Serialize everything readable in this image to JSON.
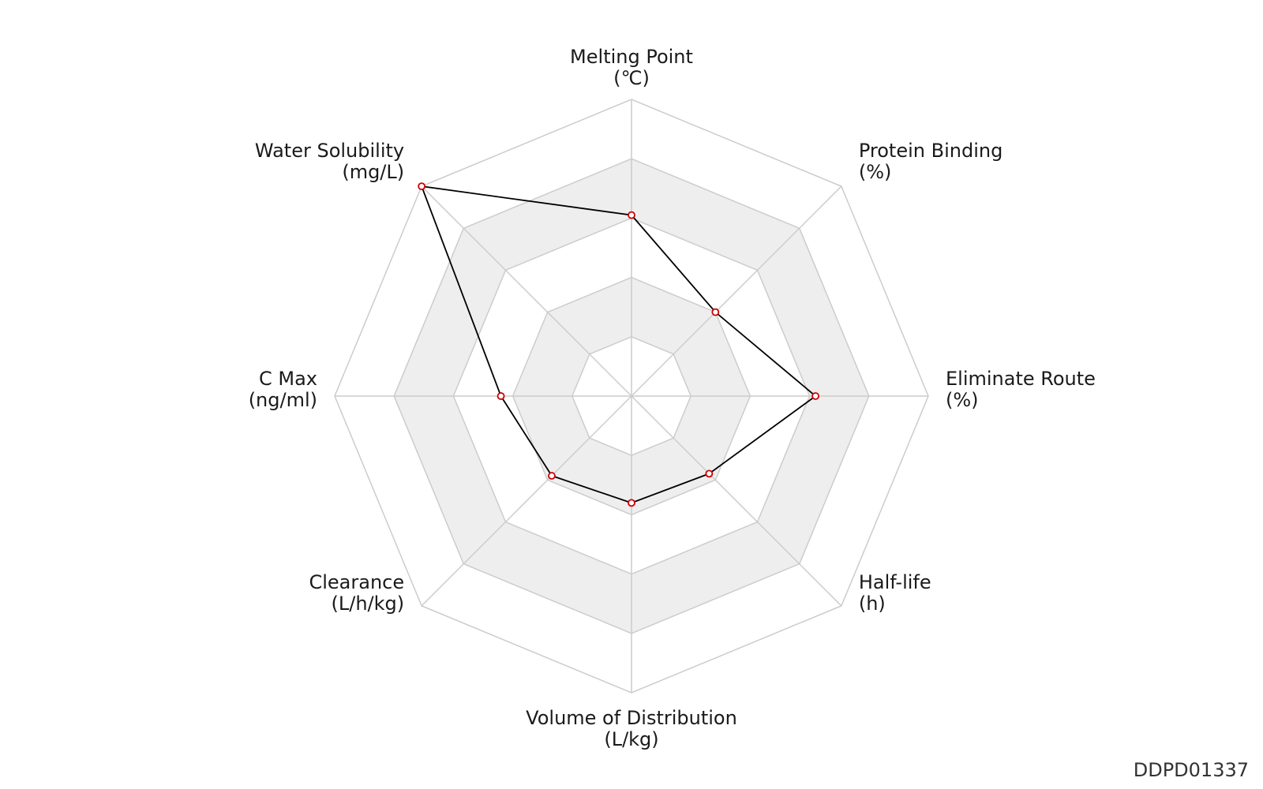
{
  "chart_data": {
    "type": "radar",
    "title": "",
    "axes": [
      {
        "name": "Melting Point",
        "unit": "(℃)"
      },
      {
        "name": "Protein Binding",
        "unit": "(%)"
      },
      {
        "name": "Eliminate Route",
        "unit": "(%)"
      },
      {
        "name": "Half-life",
        "unit": "(h)"
      },
      {
        "name": "Volume of Distribution",
        "unit": "(L/kg)"
      },
      {
        "name": "Clearance",
        "unit": "(L/h/kg)"
      },
      {
        "name": "C Max",
        "unit": "(ng/ml)"
      },
      {
        "name": "Water Solubility",
        "unit": "(mg/L)"
      }
    ],
    "rings": 5,
    "range": [
      0,
      1
    ],
    "series": [
      {
        "values": [
          0.61,
          0.4,
          0.62,
          0.37,
          0.36,
          0.38,
          0.44,
          1.0
        ]
      }
    ],
    "colors": {
      "grid": "#cccccc",
      "band": "#eeeeee",
      "line": "#000000",
      "marker": "#cc0000"
    }
  },
  "footer": {
    "id": "DDPD01337"
  }
}
